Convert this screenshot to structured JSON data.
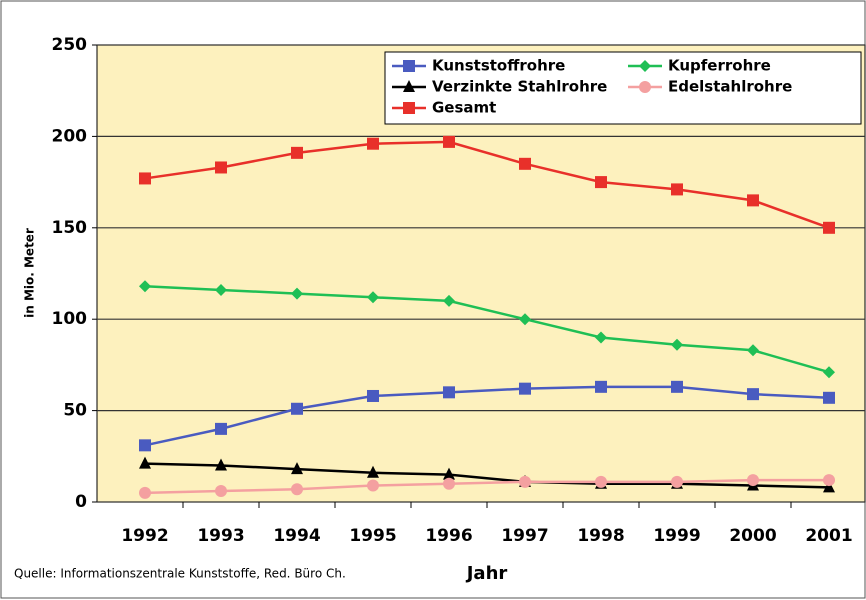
{
  "chart_data": {
    "type": "line",
    "x_label": "Jahr",
    "y_label": "in Mio. Meter",
    "source": "Quelle: Informationszentrale Kunststoffe, Red. Büro Ch.",
    "categories": [
      "1992",
      "1993",
      "1994",
      "1995",
      "1996",
      "1997",
      "1998",
      "1999",
      "2000",
      "2001"
    ],
    "series": [
      {
        "name": "Kunststoffrohre",
        "color": "#4a5bc0",
        "marker": "square",
        "values": [
          31,
          40,
          51,
          58,
          60,
          62,
          63,
          63,
          59,
          57
        ]
      },
      {
        "name": "Kupferrohre",
        "color": "#1fbf55",
        "marker": "diamond",
        "values": [
          118,
          116,
          114,
          112,
          110,
          100,
          90,
          86,
          83,
          71
        ]
      },
      {
        "name": "Verzinkte Stahlrohre",
        "color": "#000000",
        "marker": "triangle",
        "values": [
          21,
          20,
          18,
          16,
          15,
          11,
          10,
          10,
          9,
          8
        ]
      },
      {
        "name": "Edelstahlrohre",
        "color": "#f4a0a0",
        "marker": "circle",
        "values": [
          5,
          6,
          7,
          9,
          10,
          11,
          11,
          11,
          12,
          12
        ]
      },
      {
        "name": "Gesamt",
        "color": "#e8302a",
        "marker": "square",
        "values": [
          177,
          183,
          191,
          196,
          197,
          185,
          175,
          171,
          165,
          150
        ]
      }
    ],
    "ylim": [
      0,
      250
    ],
    "yticks": [
      0,
      50,
      100,
      150,
      200,
      250
    ],
    "grid": true
  }
}
